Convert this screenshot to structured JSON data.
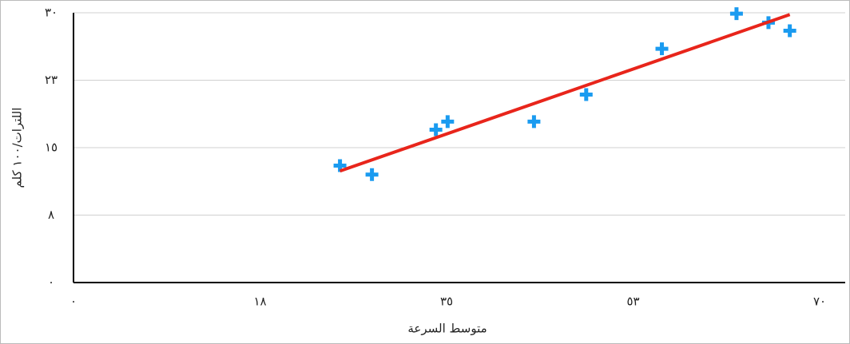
{
  "chart_data": {
    "type": "scatter",
    "x_label": "متوسط السرعة",
    "y_label": "اللترات/١٠٠ كلم",
    "series": [
      {
        "color": "#1a9bf0",
        "x": [
          25.0,
          28.0,
          34.0,
          35.1,
          43.2,
          48.1,
          55.2,
          62.2,
          65.2,
          67.2
        ],
        "values": [
          13.0,
          12.0,
          17.0,
          17.9,
          17.9,
          20.9,
          26.0,
          29.9,
          28.9,
          28.0
        ]
      }
    ],
    "trendline": {
      "color": "#e8251b",
      "x": [
        25.0,
        67.2
      ],
      "values": [
        12.4,
        29.8
      ]
    },
    "xlim": [
      0,
      70
    ],
    "xticks": [
      {
        "value": 0,
        "label": "٠"
      },
      {
        "value": 17.5,
        "label": "١٨"
      },
      {
        "value": 35,
        "label": "٣٥"
      },
      {
        "value": 52.5,
        "label": "٥٣"
      },
      {
        "value": 70,
        "label": "٧٠"
      }
    ],
    "ylim": [
      0,
      30
    ],
    "yticks": [
      {
        "value": 0,
        "label": "٠"
      },
      {
        "value": 7.5,
        "label": "٨"
      },
      {
        "value": 15,
        "label": "١٥"
      },
      {
        "value": 22.5,
        "label": "٢٣"
      },
      {
        "value": 30,
        "label": "٣٠"
      }
    ],
    "grid": true
  }
}
